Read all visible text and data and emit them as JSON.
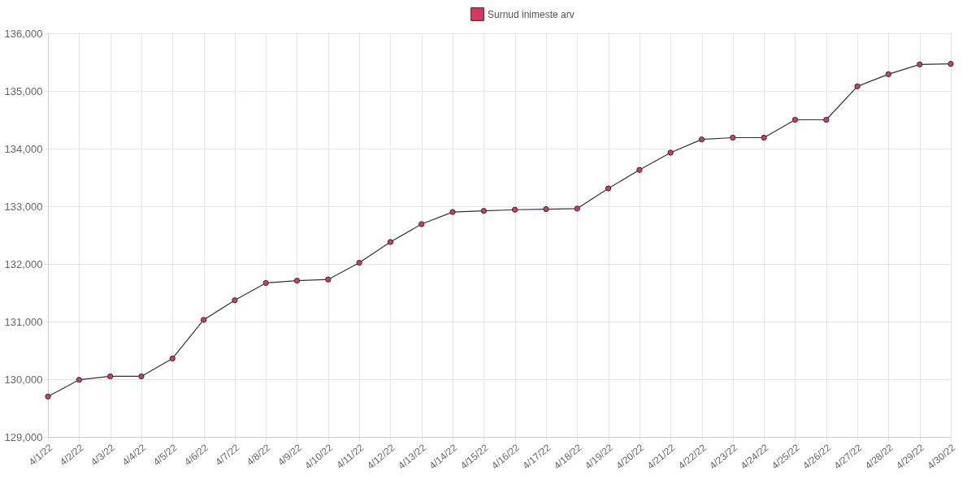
{
  "chart_data": {
    "type": "line",
    "categories": [
      "4/1/22",
      "4/2/22",
      "4/3/22",
      "4/4/22",
      "4/5/22",
      "4/6/22",
      "4/7/22",
      "4/8/22",
      "4/9/22",
      "4/10/22",
      "4/11/22",
      "4/12/22",
      "4/13/22",
      "4/14/22",
      "4/15/22",
      "4/16/22",
      "4/17/22",
      "4/18/22",
      "4/19/22",
      "4/20/22",
      "4/21/22",
      "4/22/22",
      "4/23/22",
      "4/24/22",
      "4/25/22",
      "4/26/22",
      "4/27/22",
      "4/28/22",
      "4/29/22",
      "4/30/22"
    ],
    "series": [
      {
        "name": "Surnud inimeste arv",
        "color": "#d23a63",
        "values": [
          129700,
          129990,
          130050,
          130050,
          130360,
          131030,
          131370,
          131670,
          131710,
          131730,
          132020,
          132380,
          132690,
          132900,
          132920,
          132940,
          132950,
          132960,
          133310,
          133630,
          133930,
          134160,
          134190,
          134190,
          134500,
          134500,
          135080,
          135290,
          135460,
          135470
        ]
      }
    ],
    "ylim": [
      129000,
      136000
    ],
    "yticks": [
      {
        "value": 129000,
        "label": "129,000"
      },
      {
        "value": 130000,
        "label": "130,000"
      },
      {
        "value": 131000,
        "label": "131,000"
      },
      {
        "value": 132000,
        "label": "132,000"
      },
      {
        "value": 133000,
        "label": "133,000"
      },
      {
        "value": 134000,
        "label": "134,000"
      },
      {
        "value": 135000,
        "label": "135,000"
      },
      {
        "value": 136000,
        "label": "136,000"
      }
    ],
    "grid": true,
    "legend": "top",
    "marker": "circle",
    "line_style": "solid"
  }
}
